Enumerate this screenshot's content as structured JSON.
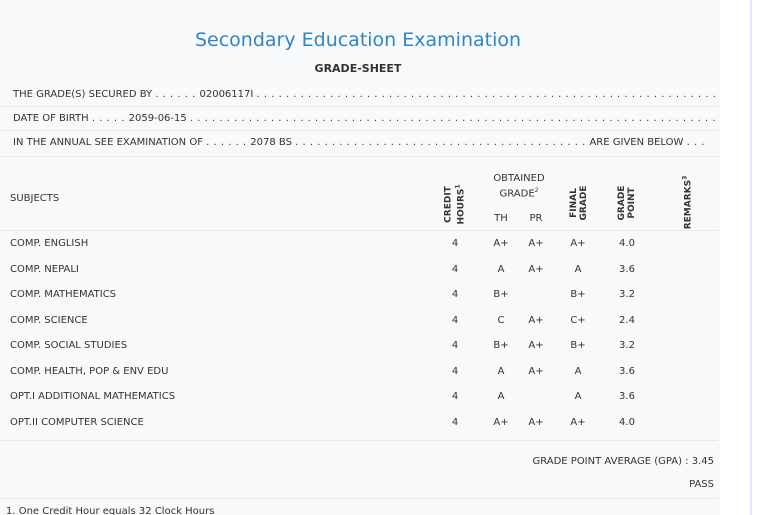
{
  "header": {
    "title": "Secondary Education Examination",
    "subtitle": "GRADE-SHEET"
  },
  "info": {
    "secured_by_label": "THE GRADE(S) SECURED BY",
    "secured_by_value": "02006117I",
    "dob_label": "DATE OF BIRTH",
    "dob_value": "2059-06-15",
    "exam_label": "IN THE ANNUAL SEE EXAMINATION OF",
    "exam_value": "2078 BS",
    "exam_suffix": "ARE GIVEN BELOW"
  },
  "table": {
    "headers": {
      "subjects": "SUBJECTS",
      "credit_line1": "CREDIT",
      "credit_line2": "HOURS",
      "credit_sup": "1",
      "obtained_line1": "OBTAINED",
      "obtained_line2": "GRADE",
      "obtained_sup": "2",
      "th": "TH",
      "pr": "PR",
      "final_line1": "FINAL",
      "final_line2": "GRADE",
      "gp_line1": "GRADE",
      "gp_line2": "POINT",
      "remarks": "REMARKS",
      "remarks_sup": "3"
    },
    "rows": [
      {
        "subject": "COMP. ENGLISH",
        "credit": "4",
        "th": "A+",
        "pr": "A+",
        "final": "A+",
        "gp": "4.0"
      },
      {
        "subject": "COMP. NEPALI",
        "credit": "4",
        "th": "A",
        "pr": "A+",
        "final": "A",
        "gp": "3.6"
      },
      {
        "subject": "COMP. MATHEMATICS",
        "credit": "4",
        "th": "B+",
        "pr": "",
        "final": "B+",
        "gp": "3.2"
      },
      {
        "subject": "COMP. SCIENCE",
        "credit": "4",
        "th": "C",
        "pr": "A+",
        "final": "C+",
        "gp": "2.4"
      },
      {
        "subject": "COMP. SOCIAL STUDIES",
        "credit": "4",
        "th": "B+",
        "pr": "A+",
        "final": "B+",
        "gp": "3.2"
      },
      {
        "subject": "COMP. HEALTH, POP & ENV EDU",
        "credit": "4",
        "th": "A",
        "pr": "A+",
        "final": "A",
        "gp": "3.6"
      },
      {
        "subject": "OPT.I ADDITIONAL MATHEMATICS",
        "credit": "4",
        "th": "A",
        "pr": "",
        "final": "A",
        "gp": "3.6"
      },
      {
        "subject": "OPT.II COMPUTER SCIENCE",
        "credit": "4",
        "th": "A+",
        "pr": "A+",
        "final": "A+",
        "gp": "4.0"
      }
    ]
  },
  "summary": {
    "gpa_label": "GRADE POINT AVERAGE (GPA) :",
    "gpa_value": "3.45",
    "result": "PASS"
  },
  "footnote": "1. One Credit Hour equals 32 Clock Hours"
}
